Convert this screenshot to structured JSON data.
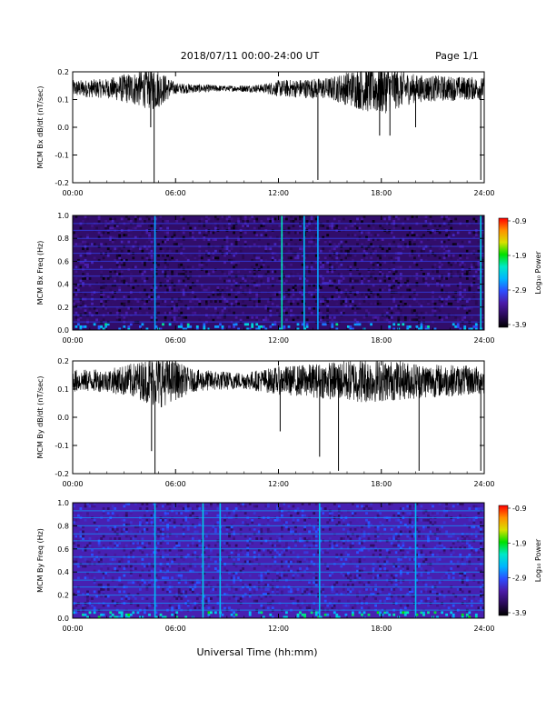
{
  "header": {
    "title": "2018/07/11  00:00-24:00 UT",
    "page": "Page 1/1"
  },
  "footer": {
    "xlabel": "Universal Time (hh:mm)"
  },
  "colors": {
    "background": "#ffffff",
    "trace": "#000000",
    "colormap": [
      "#000000",
      "#2b0a5a",
      "#4b1ba8",
      "#2d4dff",
      "#00b4ff",
      "#00e8c8",
      "#00e000",
      "#d8e000",
      "#ff9000",
      "#ff0000"
    ]
  },
  "chart_data": [
    {
      "type": "line",
      "ylabel": "MCM Bx dB/dt (nT/sec)",
      "xlim": [
        0,
        24
      ],
      "ylim": [
        -0.2,
        0.2
      ],
      "x_ticks": [
        "00:00",
        "06:00",
        "12:00",
        "18:00",
        "24:00"
      ],
      "y_ticks": [
        "0.2",
        "0.1",
        "0.0",
        "-0.1",
        "-0.2"
      ],
      "baseline": 0.14,
      "activity_envelope": [
        {
          "x": 0,
          "amp": 0.03
        },
        {
          "x": 2,
          "amp": 0.035
        },
        {
          "x": 3.5,
          "amp": 0.06
        },
        {
          "x": 4.8,
          "amp": 0.08
        },
        {
          "x": 6,
          "amp": 0.02
        },
        {
          "x": 9,
          "amp": 0.01
        },
        {
          "x": 11,
          "amp": 0.015
        },
        {
          "x": 12,
          "amp": 0.03
        },
        {
          "x": 15,
          "amp": 0.04
        },
        {
          "x": 17.8,
          "amp": 0.1
        },
        {
          "x": 20,
          "amp": 0.05
        },
        {
          "x": 24,
          "amp": 0.04
        }
      ],
      "spikes": [
        {
          "x": 4.75,
          "y": -0.21
        },
        {
          "x": 4.55,
          "y": 0.0
        },
        {
          "x": 14.3,
          "y": -0.19
        },
        {
          "x": 17.9,
          "y": -0.03
        },
        {
          "x": 18.5,
          "y": -0.03
        },
        {
          "x": 20.0,
          "y": 0.0
        },
        {
          "x": 23.8,
          "y": -0.19
        }
      ]
    },
    {
      "type": "heatmap",
      "ylabel": "MCM Bx Freq (Hz)",
      "xlim": [
        0,
        24
      ],
      "ylim": [
        0,
        1.0
      ],
      "x_ticks": [
        "00:00",
        "06:00",
        "12:00",
        "18:00",
        "24:00"
      ],
      "y_ticks": [
        "1.0",
        "0.8",
        "0.6",
        "0.4",
        "0.2",
        "0.0"
      ],
      "colorbar": {
        "label": "Log₁₀ Power",
        "min": -3.9,
        "max": -0.9,
        "ticks": [
          "-0.9",
          "-1.9",
          "-2.9",
          "-3.9"
        ]
      },
      "background_level": -3.5,
      "harmonic_lines_hz": [
        0.07,
        0.13,
        0.2,
        0.27,
        0.33,
        0.4,
        0.47,
        0.53,
        0.6,
        0.67,
        0.73,
        0.8,
        0.87,
        0.93
      ],
      "vertical_lines": [
        {
          "x": 4.8,
          "level": -2.6
        },
        {
          "x": 12.2,
          "level": -2.2
        },
        {
          "x": 13.5,
          "level": -2.5
        },
        {
          "x": 14.3,
          "level": -2.6
        },
        {
          "x": 23.8,
          "level": -2.4
        }
      ]
    },
    {
      "type": "line",
      "ylabel": "MCM By dB/dt (nT/sec)",
      "xlim": [
        0,
        24
      ],
      "ylim": [
        -0.2,
        0.2
      ],
      "x_ticks": [
        "00:00",
        "06:00",
        "12:00",
        "18:00",
        "24:00"
      ],
      "y_ticks": [
        "0.2",
        "0.1",
        "0.0",
        "-0.1",
        "-0.2"
      ],
      "baseline": 0.13,
      "activity_envelope": [
        {
          "x": 0,
          "amp": 0.04
        },
        {
          "x": 2,
          "amp": 0.04
        },
        {
          "x": 4,
          "amp": 0.07
        },
        {
          "x": 5,
          "amp": 0.1
        },
        {
          "x": 7,
          "amp": 0.04
        },
        {
          "x": 10,
          "amp": 0.03
        },
        {
          "x": 12,
          "amp": 0.05
        },
        {
          "x": 14,
          "amp": 0.06
        },
        {
          "x": 17,
          "amp": 0.08
        },
        {
          "x": 19,
          "amp": 0.07
        },
        {
          "x": 21,
          "amp": 0.06
        },
        {
          "x": 24,
          "amp": 0.05
        }
      ],
      "spikes": [
        {
          "x": 4.6,
          "y": -0.12
        },
        {
          "x": 4.8,
          "y": -0.21
        },
        {
          "x": 14.4,
          "y": -0.14
        },
        {
          "x": 15.5,
          "y": -0.19
        },
        {
          "x": 20.2,
          "y": -0.19
        },
        {
          "x": 23.8,
          "y": -0.19
        },
        {
          "x": 12.1,
          "y": -0.05
        }
      ]
    },
    {
      "type": "heatmap",
      "ylabel": "MCM By Freq (Hz)",
      "xlim": [
        0,
        24
      ],
      "ylim": [
        0,
        1.0
      ],
      "x_ticks": [
        "00:00",
        "06:00",
        "12:00",
        "18:00",
        "24:00"
      ],
      "y_ticks": [
        "1.0",
        "0.8",
        "0.6",
        "0.4",
        "0.2",
        "0.0"
      ],
      "colorbar": {
        "label": "Log₁₀ Power",
        "min": -3.9,
        "max": -0.9,
        "ticks": [
          "-0.9",
          "-1.9",
          "-2.9",
          "-3.9"
        ]
      },
      "background_level": -3.2,
      "harmonic_lines_hz": [
        0.07,
        0.13,
        0.2,
        0.27,
        0.33,
        0.4,
        0.47,
        0.53,
        0.6,
        0.67,
        0.73,
        0.8,
        0.87,
        0.93
      ],
      "vertical_lines": [
        {
          "x": 4.8,
          "level": -2.5
        },
        {
          "x": 7.6,
          "level": -2.4
        },
        {
          "x": 8.6,
          "level": -2.5
        },
        {
          "x": 14.4,
          "level": -2.5
        },
        {
          "x": 20.0,
          "level": -2.5
        }
      ]
    }
  ]
}
